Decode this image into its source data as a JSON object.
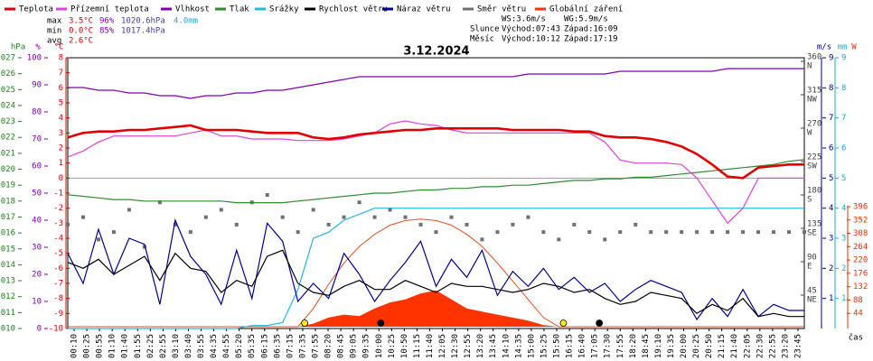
{
  "chart_data": {
    "type": "line",
    "title": "3.12.2024",
    "legend": [
      "Teplota",
      "Přízemní teplota",
      "Vlhkost",
      "Tlak",
      "Srážky",
      "Rychlost větru",
      "Náraz větru",
      "Směr větru",
      "Globální záření"
    ],
    "stats": [
      [
        "max",
        "3.5°C",
        "96%",
        "1020.6hPa",
        "4.0mm"
      ],
      [
        "min",
        "0.0°C",
        "85%",
        "1017.4hPa"
      ],
      [
        "avg",
        "2.6°C"
      ]
    ],
    "info": [
      [
        "WS:3.6m/s",
        "WG:5.9m/s"
      ],
      [
        "Slunce",
        "Východ:07:43",
        "Západ:16:09"
      ],
      [
        "Měsíc",
        "Východ:10:12",
        "Západ:17:19"
      ]
    ],
    "x_label": "čas",
    "xlim": [
      0,
      24
    ],
    "categories": [
      "00:10",
      "00:25",
      "00:55",
      "01:10",
      "01:40",
      "01:55",
      "02:25",
      "02:55",
      "03:10",
      "03:40",
      "03:55",
      "04:35",
      "04:55",
      "05:20",
      "05:35",
      "06:15",
      "06:35",
      "07:15",
      "07:35",
      "07:55",
      "08:20",
      "08:45",
      "09:05",
      "09:35",
      "10:00",
      "10:25",
      "10:50",
      "11:15",
      "11:40",
      "12:05",
      "12:30",
      "12:55",
      "13:20",
      "13:45",
      "14:10",
      "14:35",
      "15:00",
      "15:25",
      "15:50",
      "16:15",
      "16:40",
      "17:05",
      "17:30",
      "17:55",
      "18:20",
      "18:45",
      "19:10",
      "19:35",
      "20:00",
      "20:25",
      "20:50",
      "21:15",
      "21:40",
      "22:05",
      "22:30",
      "22:55",
      "23:20",
      "23:45"
    ],
    "axes": {
      "hpa": {
        "label": "hPa",
        "color": "#208020",
        "lim": [
          1010,
          1027
        ],
        "ticks": [
          1010,
          1011,
          1012,
          1013,
          1014,
          1015,
          1016,
          1017,
          1018,
          1019,
          1020,
          1021,
          1022,
          1023,
          1024,
          1025,
          1026,
          1027
        ]
      },
      "pct": {
        "label": "%",
        "color": "#8000b0",
        "lim": [
          0,
          100
        ],
        "ticks": [
          0,
          10,
          20,
          30,
          40,
          50,
          60,
          70,
          80,
          90,
          100
        ]
      },
      "temp": {
        "label": "°C",
        "color": "#d00000",
        "lim": [
          -10,
          8
        ],
        "ticks": [
          -10,
          -9,
          -8,
          -7,
          -6,
          -5,
          -4,
          -3,
          -2,
          -1,
          0,
          1,
          2,
          3,
          4,
          5,
          6,
          7,
          8
        ]
      },
      "dir": {
        "label": "",
        "color": "#404040",
        "lim": [
          0,
          360
        ],
        "ticks": [
          {
            "value": 45,
            "label": "45",
            "sub": "NE"
          },
          {
            "value": 90,
            "label": "90",
            "sub": "E"
          },
          {
            "value": 135,
            "label": "135",
            "sub": "SE"
          },
          {
            "value": 180,
            "label": "180",
            "sub": "S"
          },
          {
            "value": 225,
            "label": "225",
            "sub": "SW"
          },
          {
            "value": 270,
            "label": "270",
            "sub": "W"
          },
          {
            "value": 315,
            "label": "315",
            "sub": "NW"
          },
          {
            "value": 360,
            "label": "360",
            "sub": "N"
          }
        ]
      },
      "ms": {
        "label": "m/s",
        "color": "#000080",
        "lim": [
          0,
          9
        ],
        "ticks": [
          1,
          2,
          3,
          4,
          5,
          6,
          7,
          8,
          9
        ]
      },
      "mm": {
        "label": "mm",
        "color": "#20a8d8",
        "lim": [
          0,
          9
        ],
        "ticks": [
          1,
          2,
          3,
          4,
          5,
          6,
          7,
          8,
          9
        ]
      },
      "w": {
        "label": "W",
        "color": "#e03000",
        "lim": [
          0,
          396
        ],
        "ticks": [
          44,
          88,
          132,
          176,
          220,
          264,
          308,
          352,
          396
        ]
      }
    },
    "x": [
      0,
      0.5,
      1,
      1.5,
      2,
      2.5,
      3,
      3.5,
      4,
      4.5,
      5,
      5.5,
      6,
      6.5,
      7,
      7.5,
      8,
      8.5,
      9,
      9.5,
      10,
      10.5,
      11,
      11.5,
      12,
      12.5,
      13,
      13.5,
      14,
      14.5,
      15,
      15.5,
      16,
      16.5,
      17,
      17.5,
      18,
      18.5,
      19,
      19.5,
      20,
      20.5,
      21,
      21.5,
      22,
      22.5,
      23,
      23.5,
      24
    ],
    "series": [
      {
        "name": "Globální záření",
        "color": "#ff3300",
        "axis": "w",
        "style": "area",
        "values": [
          0,
          0,
          0,
          0,
          0,
          0,
          0,
          0,
          0,
          0,
          0,
          0,
          0,
          0,
          0,
          0,
          10,
          30,
          40,
          35,
          60,
          80,
          90,
          110,
          120,
          90,
          60,
          50,
          40,
          30,
          20,
          5,
          0,
          0,
          0,
          0,
          0,
          0,
          0,
          0,
          0,
          0,
          0,
          0,
          0,
          0,
          0,
          0,
          0
        ]
      },
      {
        "color": "#e05020",
        "axis": "w",
        "style": "thin",
        "values": [
          0,
          0,
          0,
          0,
          0,
          0,
          0,
          0,
          0,
          0,
          0,
          0,
          0,
          0,
          0,
          0,
          60,
          140,
          210,
          265,
          305,
          335,
          350,
          355,
          350,
          335,
          305,
          265,
          210,
          150,
          90,
          30,
          0,
          0,
          0,
          0,
          0,
          0,
          0,
          0,
          0,
          0,
          0,
          0,
          0,
          0,
          0,
          0,
          0
        ]
      },
      {
        "name": "Srážky",
        "color": "#20b8e8",
        "axis": "mm",
        "style": "line",
        "values": [
          0,
          0,
          0,
          0,
          0,
          0,
          0,
          0,
          0,
          0,
          0,
          0,
          0.1,
          0.1,
          0.2,
          1.3,
          3.0,
          3.2,
          3.6,
          3.8,
          4.0,
          4.0,
          4.0,
          4.0,
          4.0,
          4.0,
          4.0,
          4.0,
          4.0,
          4.0,
          4.0,
          4.0,
          4.0,
          4.0,
          4.0,
          4.0,
          4.0,
          4.0,
          4.0,
          4.0,
          4.0,
          4.0,
          4.0,
          4.0,
          4.0,
          4.0,
          4.0,
          4.0,
          4.0
        ]
      },
      {
        "name": "Směr větru",
        "color": "#707070",
        "axis": "dir",
        "style": "dots",
        "values": [
          140,
          150,
          120,
          130,
          160,
          110,
          170,
          140,
          130,
          150,
          160,
          140,
          170,
          180,
          150,
          130,
          160,
          140,
          150,
          170,
          150,
          160,
          150,
          140,
          130,
          150,
          140,
          120,
          130,
          140,
          150,
          130,
          120,
          140,
          130,
          120,
          130,
          140,
          130,
          130,
          130,
          130,
          130,
          130,
          130,
          130,
          130,
          130,
          130
        ]
      },
      {
        "name": "Náraz větru",
        "color": "#000090",
        "axis": "ms",
        "style": "line",
        "values": [
          2.5,
          1.5,
          3.3,
          1.8,
          3.0,
          2.8,
          0.8,
          3.6,
          2.4,
          1.8,
          0.8,
          2.6,
          1.0,
          3.5,
          2.9,
          0.9,
          1.5,
          1.0,
          2.5,
          1.8,
          0.9,
          1.6,
          2.2,
          2.9,
          1.4,
          2.3,
          1.7,
          2.6,
          1.1,
          1.9,
          1.4,
          2.0,
          1.3,
          1.7,
          1.2,
          1.5,
          0.9,
          1.3,
          1.6,
          1.4,
          1.2,
          0.3,
          1.0,
          0.4,
          1.3,
          0.4,
          0.8,
          0.6,
          0.6
        ]
      },
      {
        "name": "Rychlost větru",
        "color": "#000000",
        "axis": "ms",
        "style": "line",
        "values": [
          2.2,
          2.0,
          2.3,
          1.8,
          2.1,
          2.4,
          1.6,
          2.5,
          2.0,
          1.9,
          1.2,
          1.6,
          1.4,
          2.4,
          2.6,
          1.5,
          1.2,
          1.1,
          1.4,
          1.6,
          1.3,
          1.3,
          1.6,
          1.4,
          1.2,
          1.5,
          1.4,
          1.4,
          1.3,
          1.2,
          1.3,
          1.5,
          1.4,
          1.2,
          1.3,
          1.0,
          0.8,
          0.9,
          1.2,
          1.1,
          1.0,
          0.5,
          0.8,
          0.6,
          1.0,
          0.4,
          0.5,
          0.4,
          0.4
        ]
      },
      {
        "name": "Tlak",
        "color": "#2e8b2e",
        "axis": "hpa",
        "style": "line",
        "values": [
          1018.4,
          1018.3,
          1018.2,
          1018.1,
          1018.1,
          1018.0,
          1018.0,
          1018.0,
          1018.0,
          1018.0,
          1018.0,
          1017.9,
          1017.9,
          1017.9,
          1017.9,
          1018.0,
          1018.1,
          1018.2,
          1018.3,
          1018.4,
          1018.5,
          1018.5,
          1018.6,
          1018.7,
          1018.7,
          1018.8,
          1018.8,
          1018.9,
          1018.9,
          1019.0,
          1019.0,
          1019.1,
          1019.2,
          1019.3,
          1019.3,
          1019.4,
          1019.4,
          1019.5,
          1019.5,
          1019.6,
          1019.7,
          1019.8,
          1019.9,
          1020.0,
          1020.1,
          1020.2,
          1020.3,
          1020.5,
          1020.6
        ]
      },
      {
        "name": "Vlhkost",
        "color": "#8000b0",
        "axis": "pct",
        "style": "line",
        "values": [
          89,
          89,
          88,
          88,
          87,
          87,
          86,
          86,
          85,
          86,
          86,
          87,
          87,
          88,
          88,
          89,
          90,
          91,
          92,
          93,
          93,
          93,
          93,
          93,
          93,
          93,
          93,
          93,
          93,
          93,
          94,
          94,
          94,
          94,
          94,
          94,
          95,
          95,
          95,
          95,
          95,
          95,
          95,
          96,
          96,
          96,
          96,
          96,
          96
        ]
      },
      {
        "name": "Přízemní teplota",
        "color": "#e040e0",
        "axis": "temp",
        "style": "line",
        "values": [
          1.4,
          1.8,
          2.4,
          2.8,
          2.8,
          2.8,
          2.8,
          2.8,
          3.0,
          3.2,
          2.8,
          2.8,
          2.6,
          2.6,
          2.6,
          2.5,
          2.5,
          2.5,
          2.6,
          2.8,
          3.0,
          3.6,
          3.8,
          3.6,
          3.5,
          3.2,
          3.0,
          3.0,
          3.0,
          3.0,
          3.0,
          3.0,
          3.0,
          3.0,
          3.0,
          2.4,
          1.2,
          1.0,
          1.0,
          1.0,
          0.9,
          0.0,
          -1.5,
          -3.0,
          -2.0,
          0.0,
          0.0,
          0.0,
          0.0
        ]
      },
      {
        "name": "Teplota",
        "color": "#e00000",
        "axis": "temp",
        "style": "thick",
        "values": [
          2.7,
          3.0,
          3.1,
          3.1,
          3.2,
          3.2,
          3.3,
          3.4,
          3.5,
          3.2,
          3.2,
          3.2,
          3.1,
          3.0,
          3.0,
          3.0,
          2.7,
          2.6,
          2.7,
          2.9,
          3.0,
          3.1,
          3.2,
          3.2,
          3.3,
          3.3,
          3.3,
          3.3,
          3.3,
          3.2,
          3.2,
          3.2,
          3.2,
          3.1,
          3.1,
          2.8,
          2.7,
          2.7,
          2.6,
          2.4,
          2.1,
          1.6,
          0.9,
          0.1,
          0.0,
          0.7,
          0.8,
          0.9,
          0.9
        ]
      }
    ],
    "legend_colors": [
      "#e00000",
      "#e040e0",
      "#8000b0",
      "#2e8b2e",
      "#20b8e8",
      "#000000",
      "#000090",
      "#707070",
      "#ff3300"
    ],
    "events": [
      {
        "x": 7.72,
        "color": "#ffee00"
      },
      {
        "x": 16.15,
        "color": "#ffee00"
      },
      {
        "x": 10.2,
        "color": "#000000"
      },
      {
        "x": 17.32,
        "color": "#000000"
      }
    ]
  }
}
